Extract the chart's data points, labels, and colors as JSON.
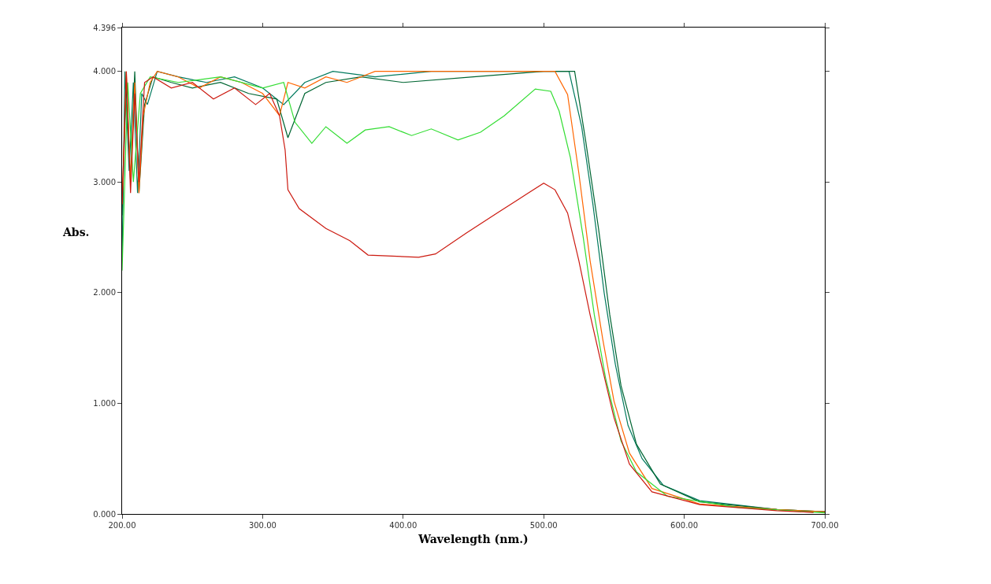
{
  "chart_data": {
    "type": "line",
    "xlabel": "Wavelength (nm.)",
    "ylabel": "Abs.",
    "xlim": [
      200,
      700
    ],
    "xticks": [
      {
        "value": 200,
        "label": "200.00"
      },
      {
        "value": 300,
        "label": "300.00"
      },
      {
        "value": 400,
        "label": "400.00"
      },
      {
        "value": 500,
        "label": "500.00"
      },
      {
        "value": 600,
        "label": "600.00"
      },
      {
        "value": 700,
        "label": "700.00"
      }
    ],
    "ylim": [
      0,
      4.396
    ],
    "yticks": [
      {
        "value": 0,
        "label": "0.000"
      },
      {
        "value": 1,
        "label": "1.000"
      },
      {
        "value": 2,
        "label": "2.000"
      },
      {
        "value": 3,
        "label": "3.000"
      },
      {
        "value": 4,
        "label": "4.000"
      },
      {
        "value": 4.396,
        "label": "4.396"
      }
    ],
    "marker": "none",
    "line_style": "solid",
    "series": [
      {
        "color": "#007a5e",
        "x": [
          200,
          202,
          205,
          208,
          211,
          214,
          218,
          225,
          240,
          260,
          280,
          300,
          315,
          330,
          350,
          380,
          420,
          470,
          518,
          527,
          535,
          543,
          551,
          560,
          570,
          585,
          611,
          666,
          700
        ],
        "values": [
          2.3,
          4.0,
          3.1,
          3.9,
          2.9,
          3.8,
          3.7,
          4.0,
          3.95,
          3.9,
          3.95,
          3.85,
          3.7,
          3.9,
          4.0,
          3.95,
          4.0,
          4.0,
          4.0,
          3.5,
          2.8,
          2.0,
          1.35,
          0.8,
          0.5,
          0.26,
          0.12,
          0.04,
          0.02
        ]
      },
      {
        "color": "#006633",
        "x": [
          200,
          203,
          206,
          209,
          212,
          216,
          222,
          235,
          250,
          270,
          290,
          310,
          318,
          330,
          345,
          370,
          400,
          450,
          500,
          522,
          530,
          539,
          547,
          555,
          566,
          583,
          611,
          666,
          700
        ],
        "values": [
          2.7,
          3.9,
          3.0,
          4.0,
          2.9,
          3.7,
          3.95,
          3.9,
          3.85,
          3.9,
          3.8,
          3.75,
          3.4,
          3.8,
          3.9,
          3.95,
          3.9,
          3.95,
          4.0,
          4.0,
          3.36,
          2.58,
          1.8,
          1.16,
          0.63,
          0.27,
          0.11,
          0.04,
          0.02
        ]
      },
      {
        "color": "#ff6600",
        "x": [
          200,
          203,
          206,
          209,
          212,
          215,
          220,
          225,
          240,
          255,
          270,
          285,
          300,
          312,
          318,
          330,
          345,
          360,
          380,
          430,
          500,
          508,
          517,
          525,
          533,
          542,
          550,
          561,
          577,
          611,
          666,
          700
        ],
        "values": [
          2.8,
          4.0,
          3.0,
          3.9,
          2.9,
          3.6,
          3.9,
          4.0,
          3.95,
          3.85,
          3.95,
          3.9,
          3.8,
          3.6,
          3.9,
          3.85,
          3.95,
          3.9,
          4.0,
          4.0,
          4.0,
          4.0,
          3.79,
          3.08,
          2.29,
          1.58,
          1.02,
          0.55,
          0.23,
          0.09,
          0.04,
          0.02
        ]
      },
      {
        "color": "#33dd33",
        "x": [
          200,
          204,
          208,
          213,
          220,
          240,
          270,
          300,
          315,
          323,
          335,
          345,
          360,
          373,
          390,
          406,
          420,
          439,
          455,
          472,
          494,
          505,
          511,
          519,
          528,
          536,
          544,
          555,
          566,
          588,
          638,
          700
        ],
        "values": [
          2.2,
          3.9,
          3.0,
          3.8,
          3.95,
          3.9,
          3.95,
          3.85,
          3.9,
          3.54,
          3.35,
          3.5,
          3.35,
          3.47,
          3.5,
          3.42,
          3.48,
          3.38,
          3.45,
          3.6,
          3.84,
          3.82,
          3.64,
          3.22,
          2.51,
          1.8,
          1.23,
          0.66,
          0.38,
          0.16,
          0.06,
          0.01
        ]
      },
      {
        "color": "#cc1a10",
        "x": [
          200,
          203,
          206,
          209,
          212,
          216,
          222,
          235,
          250,
          265,
          280,
          295,
          305,
          312,
          316,
          318,
          326,
          345,
          362,
          375,
          411,
          423,
          445,
          467,
          489,
          500,
          508,
          517,
          525,
          533,
          542,
          550,
          561,
          577,
          611,
          666,
          692
        ],
        "values": [
          2.8,
          4.0,
          2.9,
          3.8,
          3.0,
          3.9,
          3.95,
          3.85,
          3.9,
          3.75,
          3.85,
          3.7,
          3.8,
          3.6,
          3.29,
          2.93,
          2.76,
          2.58,
          2.47,
          2.34,
          2.32,
          2.35,
          2.54,
          2.72,
          2.9,
          2.99,
          2.93,
          2.72,
          2.29,
          1.8,
          1.3,
          0.87,
          0.45,
          0.2,
          0.085,
          0.03,
          0.014
        ]
      }
    ]
  }
}
